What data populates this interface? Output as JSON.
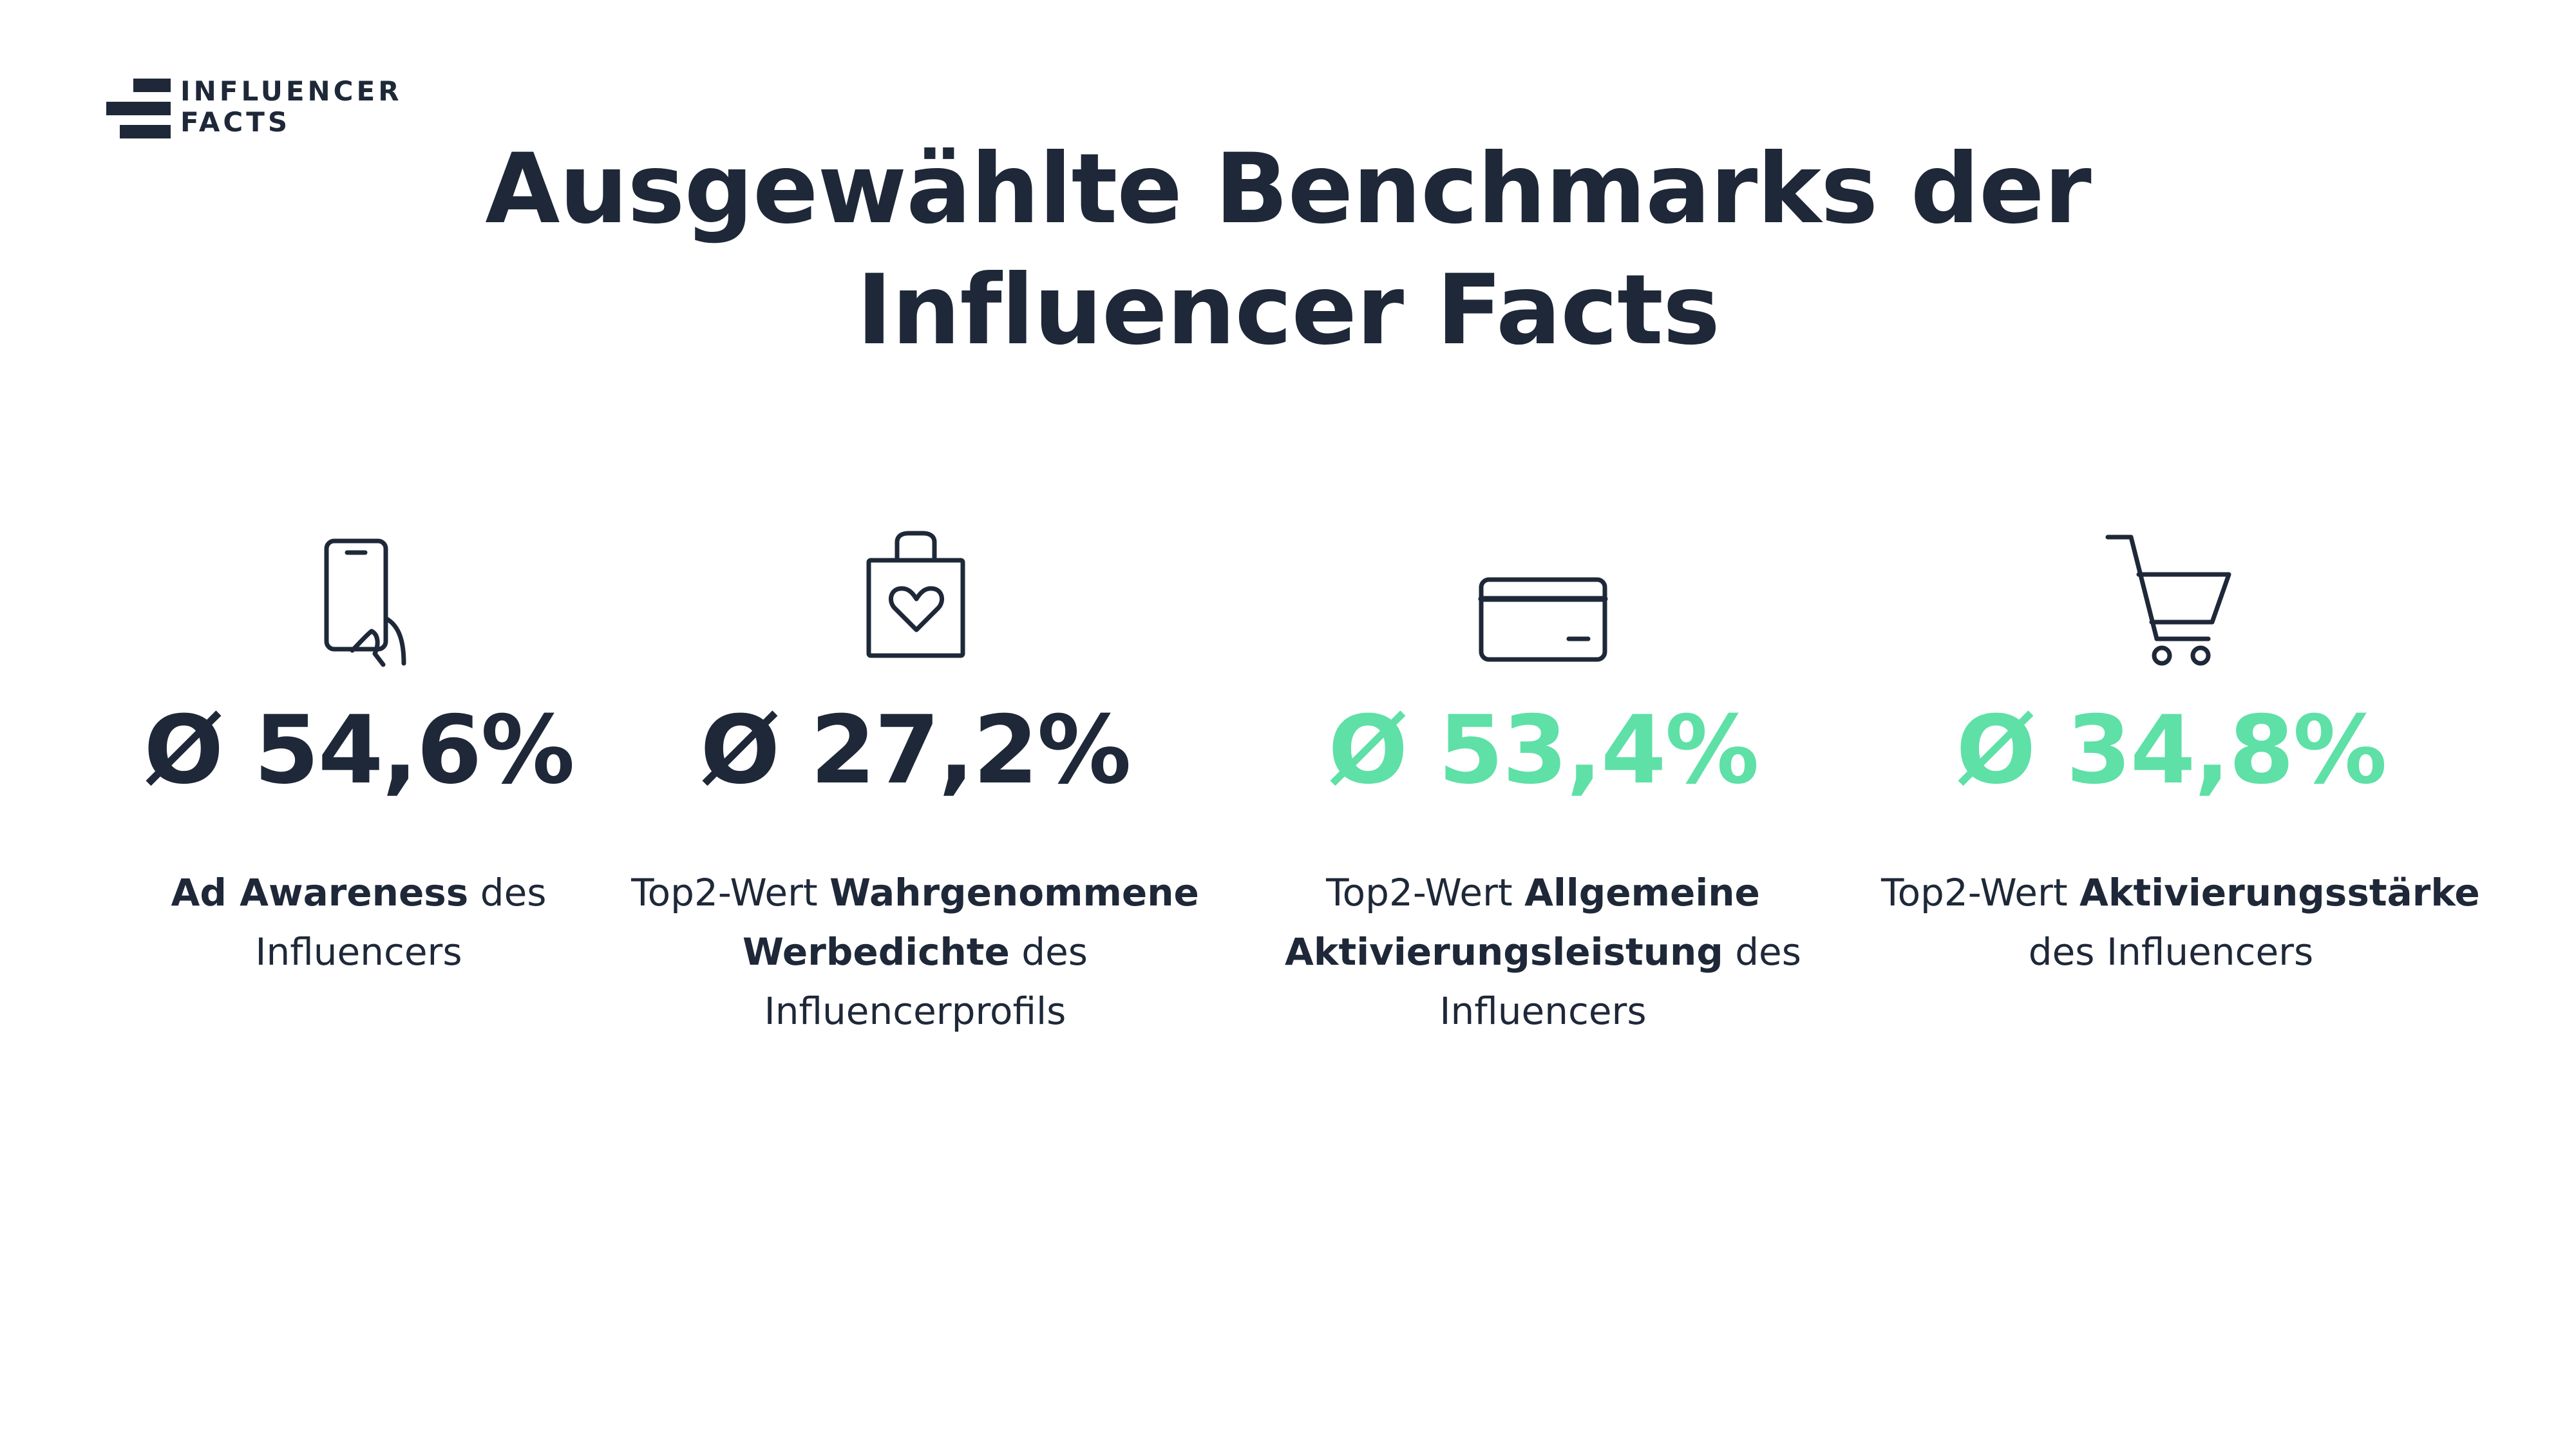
{
  "logo": {
    "line1": "INFLUENCER",
    "line2": "FACTS"
  },
  "title": {
    "line1": "Ausgewählte Benchmarks der",
    "line2": "Influencer Facts"
  },
  "colors": {
    "dark": "#1e2838",
    "accent": "#5ee0a6"
  },
  "benchmarks": [
    {
      "icon": "smartphone-hand-icon",
      "value": "Ø 54,6%",
      "value_color": "#1e2838",
      "caption": {
        "l1_bold": "Ad Awareness",
        "l1_rest": " des",
        "l2": "Influencers"
      }
    },
    {
      "icon": "shopping-bag-heart-icon",
      "value": "Ø 27,2%",
      "value_color": "#1e2838",
      "caption": {
        "l1_pre": "Top2-Wert ",
        "l1_bold": "Wahrgenommene",
        "l2_bold": "Werbedichte",
        "l2_rest": " des",
        "l3": "Influencerprofils"
      }
    },
    {
      "icon": "credit-card-icon",
      "value": "Ø 53,4%",
      "value_color": "#5ee0a6",
      "caption": {
        "l1_pre": "Top2-Wert ",
        "l1_bold": "Allgemeine",
        "l2_bold": "Aktivierungsleistung",
        "l2_rest": " des",
        "l3": "Influencers"
      }
    },
    {
      "icon": "shopping-cart-icon",
      "value": "Ø 34,8%",
      "value_color": "#5ee0a6",
      "caption": {
        "l1_pre": "Top2-Wert ",
        "l1_bold": "Aktivierungsstärke",
        "l2": "des Influencers"
      }
    }
  ]
}
